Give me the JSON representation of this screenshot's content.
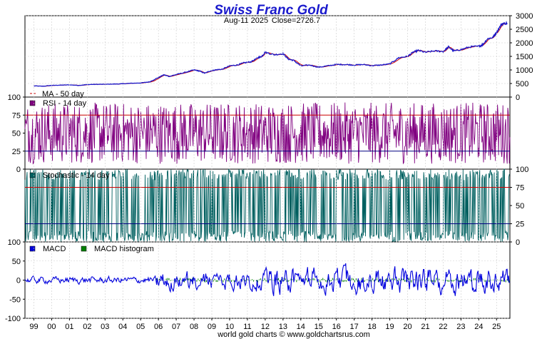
{
  "chart_data": {
    "title": "Swiss Franc Gold",
    "subtitle_date": "Aug-11  2025",
    "subtitle_close": "Close=2726.7",
    "footer": "world gold charts © www.goldchartsrus.com",
    "x_labels": [
      "99",
      "00",
      "01",
      "02",
      "03",
      "04",
      "05",
      "06",
      "07",
      "08",
      "09",
      "10",
      "11",
      "12",
      "13",
      "14",
      "15",
      "16",
      "17",
      "18",
      "19",
      "20",
      "21",
      "22",
      "23",
      "24",
      "25"
    ],
    "colors": {
      "price": "#1a1acc",
      "ma": "#cc0000",
      "rsi": "#800080",
      "stoch": "#006060",
      "macd": "#0000dd",
      "hist": "#008000",
      "line75": "#cc0000",
      "line25": "#000080",
      "grid": "#cccccc"
    },
    "panels": [
      {
        "type": "line",
        "name": "price",
        "ylim": [
          0,
          3000
        ],
        "y_ticks": [
          "3000",
          "2500",
          "2000",
          "1500",
          "1000",
          "500",
          "0"
        ],
        "legend": [
          {
            "label": "MA - 50 day",
            "marker": "dash"
          }
        ],
        "x": [
          1999.0,
          1999.5,
          2000.0,
          2000.5,
          2001.0,
          2001.5,
          2002.0,
          2002.5,
          2003.0,
          2003.5,
          2004.0,
          2004.5,
          2005.0,
          2005.5,
          2006.0,
          2006.3,
          2006.6,
          2007.0,
          2007.5,
          2008.0,
          2008.3,
          2008.6,
          2008.9,
          2009.2,
          2009.6,
          2010.0,
          2010.4,
          2010.8,
          2011.2,
          2011.6,
          2011.8,
          2012.0,
          2012.5,
          2013.0,
          2013.3,
          2013.6,
          2014.0,
          2014.5,
          2015.0,
          2015.5,
          2016.0,
          2016.5,
          2017.0,
          2017.5,
          2018.0,
          2018.5,
          2019.0,
          2019.5,
          2020.0,
          2020.3,
          2020.6,
          2021.0,
          2021.5,
          2022.0,
          2022.3,
          2022.6,
          2023.0,
          2023.5,
          2024.0,
          2024.2,
          2024.5,
          2024.8,
          2025.0,
          2025.3,
          2025.6
        ],
        "y": [
          410,
          400,
          430,
          440,
          450,
          430,
          460,
          470,
          470,
          480,
          490,
          510,
          520,
          560,
          720,
          820,
          760,
          830,
          910,
          1000,
          960,
          880,
          960,
          1000,
          1030,
          1150,
          1180,
          1260,
          1300,
          1450,
          1500,
          1650,
          1560,
          1600,
          1400,
          1350,
          1150,
          1180,
          1100,
          1150,
          1200,
          1200,
          1180,
          1200,
          1160,
          1180,
          1220,
          1450,
          1500,
          1650,
          1720,
          1650,
          1700,
          1680,
          1850,
          1700,
          1750,
          1850,
          1870,
          1920,
          2150,
          2200,
          2400,
          2700,
          2726.7
        ]
      },
      {
        "type": "oscillator",
        "name": "rsi",
        "ylim": [
          0,
          100
        ],
        "y_ticks_left": [
          "100",
          "75",
          "50",
          "25",
          "0"
        ],
        "levels": [
          75,
          25
        ],
        "legend": [
          {
            "label": "RSI - 14 day",
            "marker": "square"
          }
        ]
      },
      {
        "type": "oscillator",
        "name": "stochastic",
        "ylim": [
          0,
          100
        ],
        "y_ticks_right": [
          "100",
          "75",
          "50",
          "25",
          "0"
        ],
        "levels": [
          75,
          25
        ],
        "legend": [
          {
            "label": "Stochastic - 14 day",
            "marker": "square"
          }
        ]
      },
      {
        "type": "macd",
        "name": "macd",
        "ylim": [
          -100,
          100
        ],
        "y_ticks_left": [
          "100",
          "50",
          "0",
          "-50",
          "-100"
        ],
        "legend": [
          {
            "label": "MACD",
            "marker": "square"
          },
          {
            "label": "MACD histogram",
            "marker": "square"
          }
        ]
      }
    ]
  }
}
